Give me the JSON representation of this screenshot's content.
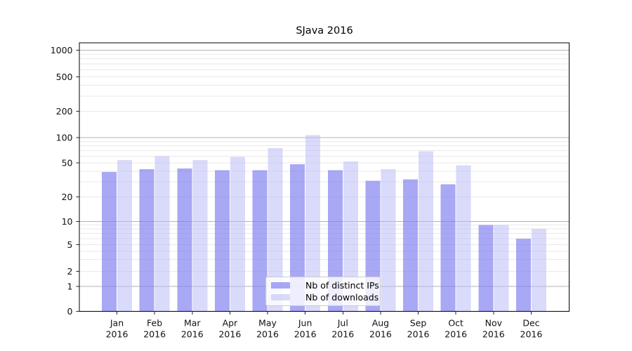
{
  "chart_data": {
    "type": "bar",
    "title": "SJava 2016",
    "categories": [
      "Jan 2016",
      "Feb 2016",
      "Mar 2016",
      "Apr 2016",
      "May 2016",
      "Jun 2016",
      "Jul 2016",
      "Aug 2016",
      "Sep 2016",
      "Oct 2016",
      "Nov 2016",
      "Dec 2016"
    ],
    "series": [
      {
        "name": "Nb of distinct IPs",
        "color": "rgba(127,127,240,0.68)",
        "values": [
          39,
          42,
          43,
          41,
          41,
          48,
          41,
          31,
          32,
          28,
          9,
          6
        ]
      },
      {
        "name": "Nb of downloads",
        "color": "rgba(187,187,245,0.55)",
        "values": [
          54,
          60,
          54,
          59,
          75,
          107,
          52,
          42,
          69,
          47,
          9,
          8
        ]
      }
    ],
    "yscale": "symlog",
    "yticks": [
      0,
      1,
      2,
      5,
      10,
      20,
      50,
      100,
      200,
      500,
      1000
    ],
    "ylim": [
      0,
      1000
    ],
    "grid": "both",
    "legend_position": "lower center"
  }
}
